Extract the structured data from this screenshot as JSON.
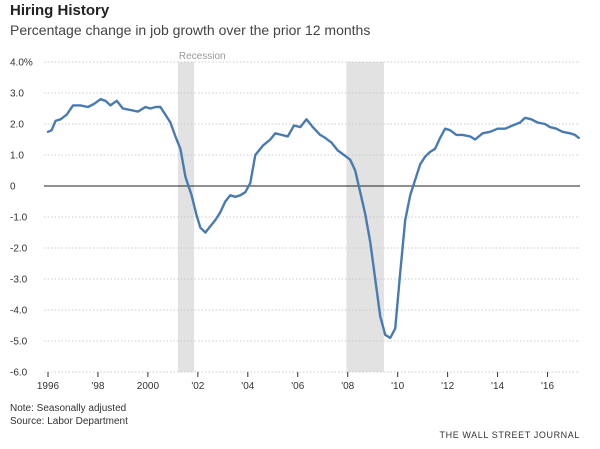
{
  "header": {
    "title": "Hiring History",
    "subtitle": "Percentage change in job growth over the prior 12 months"
  },
  "footer": {
    "note": "Note: Seasonally adjusted",
    "source": "Source: Labor Department",
    "credit": "THE WALL STREET JOURNAL"
  },
  "colors": {
    "line": "#4a7bb0",
    "recession": "#e2e2e2",
    "zero_line": "#222222",
    "grid": "#bdbdbd"
  },
  "chart_data": {
    "type": "line",
    "title": "Hiring History",
    "subtitle": "Percentage change in job growth over the prior 12 months",
    "xlabel": "",
    "ylabel": "",
    "xlim": [
      1996,
      2017.3
    ],
    "ylim": [
      -6,
      4
    ],
    "y_ticks": [
      {
        "value": 4,
        "label": "4.0%"
      },
      {
        "value": 3,
        "label": "3.0"
      },
      {
        "value": 2,
        "label": "2.0"
      },
      {
        "value": 1,
        "label": "1.0"
      },
      {
        "value": 0,
        "label": "0"
      },
      {
        "value": -1,
        "label": "-1.0"
      },
      {
        "value": -2,
        "label": "-2.0"
      },
      {
        "value": -3,
        "label": "-3.0"
      },
      {
        "value": -4,
        "label": "-4.0"
      },
      {
        "value": -5,
        "label": "-5.0"
      },
      {
        "value": -6,
        "label": "-6.0"
      }
    ],
    "x_ticks": [
      {
        "value": 1996,
        "label": "1996"
      },
      {
        "value": 1998,
        "label": "'98"
      },
      {
        "value": 2000,
        "label": "2000"
      },
      {
        "value": 2002,
        "label": "'02"
      },
      {
        "value": 2004,
        "label": "'04"
      },
      {
        "value": 2006,
        "label": "'06"
      },
      {
        "value": 2008,
        "label": "'08"
      },
      {
        "value": 2010,
        "label": "'10"
      },
      {
        "value": 2012,
        "label": "'12"
      },
      {
        "value": 2014,
        "label": "'14"
      },
      {
        "value": 2016,
        "label": "'16"
      }
    ],
    "recessions": [
      {
        "start": 2001.2,
        "end": 2001.85,
        "label": "Recession"
      },
      {
        "start": 2007.95,
        "end": 2009.45,
        "label": ""
      }
    ],
    "grid": true,
    "series": [
      {
        "name": "Job growth",
        "x": [
          1996.0,
          1996.15,
          1996.3,
          1996.5,
          1996.75,
          1997.0,
          1997.3,
          1997.6,
          1997.85,
          1998.1,
          1998.3,
          1998.5,
          1998.75,
          1999.0,
          1999.3,
          1999.6,
          1999.9,
          2000.1,
          2000.3,
          2000.5,
          2000.7,
          2000.9,
          2001.1,
          2001.3,
          2001.5,
          2001.75,
          2001.95,
          2002.1,
          2002.3,
          2002.5,
          2002.7,
          2002.9,
          2003.1,
          2003.3,
          2003.5,
          2003.7,
          2003.9,
          2004.1,
          2004.3,
          2004.6,
          2004.9,
          2005.1,
          2005.35,
          2005.6,
          2005.85,
          2006.1,
          2006.35,
          2006.6,
          2006.9,
          2007.1,
          2007.35,
          2007.6,
          2007.85,
          2008.1,
          2008.3,
          2008.5,
          2008.7,
          2008.9,
          2009.1,
          2009.3,
          2009.5,
          2009.7,
          2009.9,
          2010.1,
          2010.3,
          2010.5,
          2010.7,
          2010.9,
          2011.1,
          2011.3,
          2011.5,
          2011.7,
          2011.9,
          2012.1,
          2012.35,
          2012.6,
          2012.9,
          2013.1,
          2013.4,
          2013.7,
          2014.0,
          2014.3,
          2014.6,
          2014.9,
          2015.1,
          2015.35,
          2015.6,
          2015.9,
          2016.1,
          2016.35,
          2016.6,
          2016.9,
          2017.1,
          2017.25
        ],
        "values": [
          1.75,
          1.8,
          2.1,
          2.15,
          2.3,
          2.6,
          2.6,
          2.55,
          2.65,
          2.8,
          2.75,
          2.6,
          2.75,
          2.5,
          2.45,
          2.4,
          2.55,
          2.5,
          2.55,
          2.55,
          2.3,
          2.05,
          1.6,
          1.2,
          0.3,
          -0.3,
          -0.95,
          -1.35,
          -1.5,
          -1.3,
          -1.1,
          -0.85,
          -0.5,
          -0.3,
          -0.35,
          -0.3,
          -0.2,
          0.1,
          1.0,
          1.3,
          1.5,
          1.7,
          1.65,
          1.6,
          1.95,
          1.9,
          2.15,
          1.9,
          1.65,
          1.55,
          1.4,
          1.15,
          1.0,
          0.85,
          0.5,
          -0.2,
          -0.9,
          -1.8,
          -3.0,
          -4.2,
          -4.8,
          -4.9,
          -4.6,
          -2.8,
          -1.1,
          -0.3,
          0.2,
          0.7,
          0.95,
          1.1,
          1.2,
          1.55,
          1.85,
          1.8,
          1.65,
          1.65,
          1.6,
          1.5,
          1.7,
          1.75,
          1.85,
          1.85,
          1.95,
          2.05,
          2.2,
          2.15,
          2.05,
          2.0,
          1.9,
          1.85,
          1.75,
          1.7,
          1.65,
          1.55
        ]
      }
    ]
  }
}
